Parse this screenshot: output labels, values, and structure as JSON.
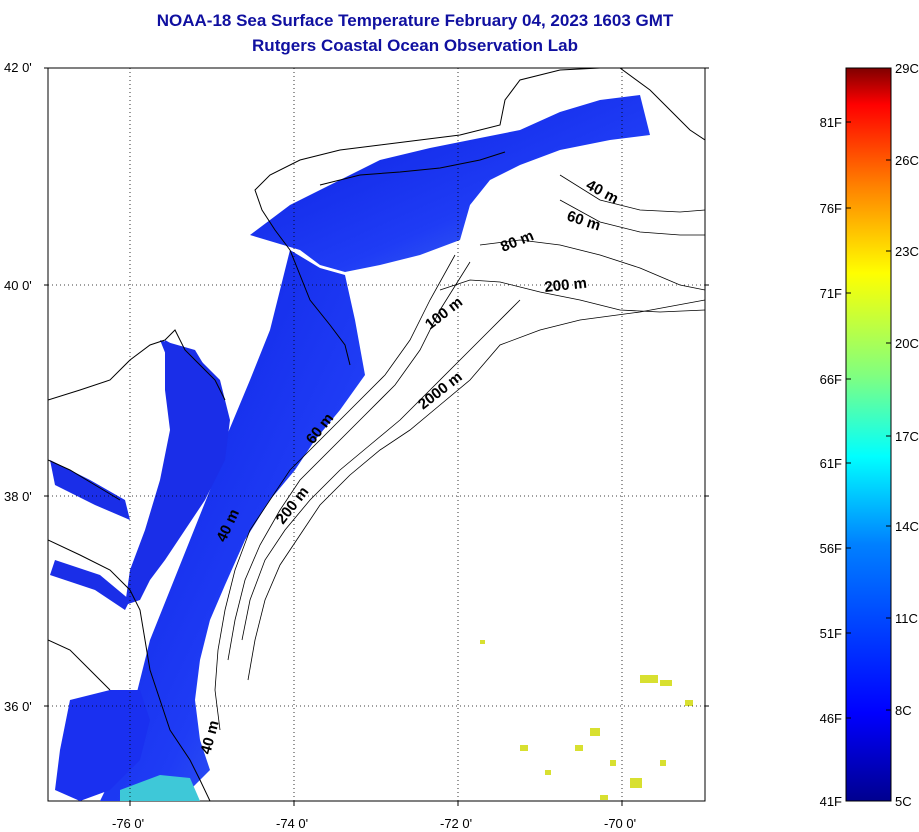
{
  "title": {
    "line1": "NOAA-18 Sea Surface Temperature February 04, 2023 1603 GMT",
    "line2": "Rutgers Coastal Ocean Observation Lab"
  },
  "axes": {
    "lat_labels": [
      "42 0'",
      "40 0'",
      "38 0'",
      "36 0'"
    ],
    "lon_labels": [
      "-76 0'",
      "-74 0'",
      "-72 0'",
      "-70 0'"
    ]
  },
  "contour_labels": [
    "40 m",
    "60 m",
    "80 m",
    "200 m",
    "100 m",
    "2000 m",
    "60 m",
    "200 m",
    "40 m",
    "40 m"
  ],
  "colorbar": {
    "fahrenheit": [
      "81F",
      "76F",
      "71F",
      "66F",
      "61F",
      "56F",
      "51F",
      "46F",
      "41F"
    ],
    "celsius": [
      "29C",
      "26C",
      "23C",
      "20C",
      "17C",
      "14C",
      "11C",
      "8C",
      "5C"
    ],
    "colors": [
      "#7f0000",
      "#ff0000",
      "#ff8000",
      "#ffff00",
      "#80ff80",
      "#00ffff",
      "#0080ff",
      "#0000ff",
      "#00008f"
    ]
  }
}
